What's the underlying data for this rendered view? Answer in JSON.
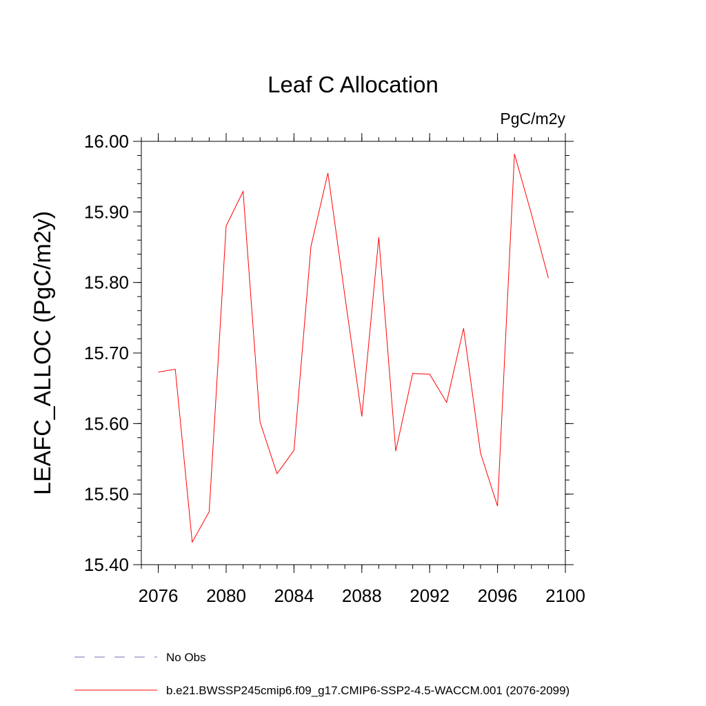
{
  "chart_data": {
    "type": "line",
    "title": "Leaf C Allocation",
    "units": "PgC/m2y",
    "xlabel": "",
    "ylabel": "LEAFC_ALLOC  (PgC/m2y)",
    "xlim": [
      2075,
      2100
    ],
    "ylim": [
      15.4,
      16.0
    ],
    "x_ticks": [
      "2076",
      "2080",
      "2084",
      "2088",
      "2092",
      "2096",
      "2100"
    ],
    "y_ticks": [
      "15.40",
      "15.50",
      "15.60",
      "15.70",
      "15.80",
      "15.90",
      "16.00"
    ],
    "series": [
      {
        "name": "b.e21.BWSSP245cmip6.f09_g17.CMIP6-SSP2-4.5-WACCM.001 (2076-2099)",
        "color": "#ff0000",
        "x": [
          2076,
          2077,
          2078,
          2079,
          2080,
          2081,
          2082,
          2083,
          2084,
          2085,
          2086,
          2087,
          2088,
          2089,
          2090,
          2091,
          2092,
          2093,
          2094,
          2095,
          2096,
          2097,
          2098,
          2099
        ],
        "values": [
          15.673,
          15.677,
          15.432,
          15.475,
          15.88,
          15.929,
          15.602,
          15.529,
          15.562,
          15.851,
          15.955,
          15.781,
          15.61,
          15.864,
          15.561,
          15.671,
          15.67,
          15.63,
          15.735,
          15.558,
          15.483,
          15.982,
          15.897,
          15.806
        ]
      }
    ],
    "legend": [
      {
        "label": "No Obs",
        "style": "dashed",
        "color": "#7b68b0"
      },
      {
        "label": "b.e21.BWSSP245cmip6.f09_g17.CMIP6-SSP2-4.5-WACCM.001 (2076-2099)",
        "style": "solid",
        "color": "#ff0000"
      }
    ]
  }
}
